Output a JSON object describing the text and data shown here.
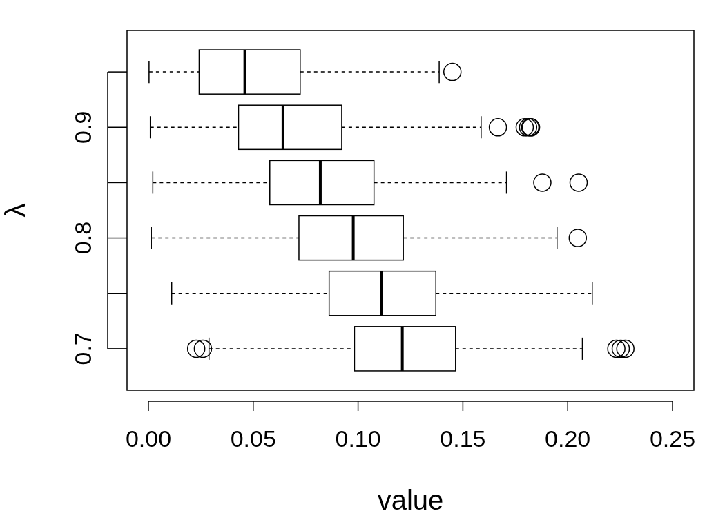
{
  "chart_data": {
    "type": "box",
    "orientation": "horizontal",
    "xlabel": "value",
    "ylabel": "λ",
    "categories": [
      null,
      "0.9",
      null,
      "0.8",
      null,
      "0.7"
    ],
    "xlim": [
      -0.0102,
      0.2602
    ],
    "xticks": [
      {
        "value": 0,
        "label": "0.00"
      },
      {
        "value": 0.05,
        "label": "0.05"
      },
      {
        "value": 0.1,
        "label": "0.10"
      },
      {
        "value": 0.15,
        "label": "0.15"
      },
      {
        "value": 0.2,
        "label": "0.20"
      },
      {
        "value": 0.25,
        "label": "0.25"
      }
    ],
    "boxes": [
      {
        "low": 0.0003,
        "q1": 0.0242,
        "median": 0.046,
        "q3": 0.0724,
        "high": 0.1387,
        "outliers": [
          0.145
        ]
      },
      {
        "low": 0.0009,
        "q1": 0.043,
        "median": 0.0642,
        "q3": 0.0922,
        "high": 0.1587,
        "outliers": [
          0.1667,
          0.1795,
          0.1811,
          0.1821,
          0.1825
        ]
      },
      {
        "low": 0.0021,
        "q1": 0.0579,
        "median": 0.082,
        "q3": 0.1076,
        "high": 0.1708,
        "outliers": [
          0.1879,
          0.2052
        ]
      },
      {
        "low": 0.0014,
        "q1": 0.0718,
        "median": 0.0977,
        "q3": 0.1216,
        "high": 0.1949,
        "outliers": [
          0.2048
        ]
      },
      {
        "low": 0.0111,
        "q1": 0.0862,
        "median": 0.1113,
        "q3": 0.1371,
        "high": 0.2117
      },
      {
        "low": 0.0289,
        "q1": 0.0983,
        "median": 0.1211,
        "q3": 0.1465,
        "high": 0.207,
        "outliers": [
          0.0228,
          0.026,
          0.2232,
          0.2253,
          0.2275
        ]
      }
    ],
    "grid": false
  }
}
